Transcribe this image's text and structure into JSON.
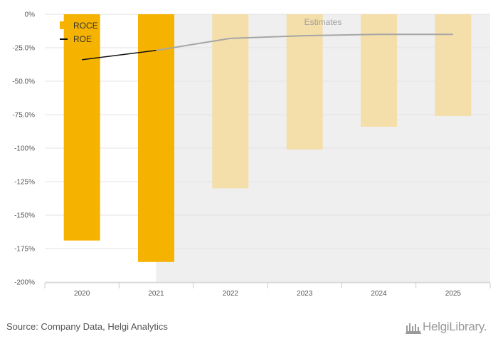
{
  "chart_data": {
    "type": "bar",
    "categories": [
      "2020",
      "2021",
      "2022",
      "2023",
      "2024",
      "2025"
    ],
    "series": [
      {
        "name": "ROCE",
        "kind": "bar",
        "values": [
          -169,
          -185,
          -130,
          -101,
          -84,
          -76
        ],
        "color": "#f5b300",
        "estimate_color": "#f4deaa"
      },
      {
        "name": "ROE",
        "kind": "line",
        "values": [
          -34,
          -27,
          -18,
          -16,
          -15,
          -15
        ],
        "color": "#111111",
        "estimate_color": "#a6a6a6"
      }
    ],
    "estimates_from_index": 2,
    "estimates_label": "Estimates",
    "estimates_background": "#efefef",
    "ylim": [
      -200,
      0
    ],
    "yticks": [
      0,
      -25,
      -50,
      -75,
      -100,
      -125,
      -150,
      -175,
      -200
    ],
    "ytick_labels": [
      "0%",
      "-25.0%",
      "-50.0%",
      "-75.0%",
      "-100%",
      "-125%",
      "-150%",
      "-175%",
      "-200%"
    ],
    "legend_position": "top-left",
    "grid": true
  },
  "footer": {
    "source": "Source: Company Data, Helgi Analytics",
    "logo_text": "HelgiLibrary."
  }
}
